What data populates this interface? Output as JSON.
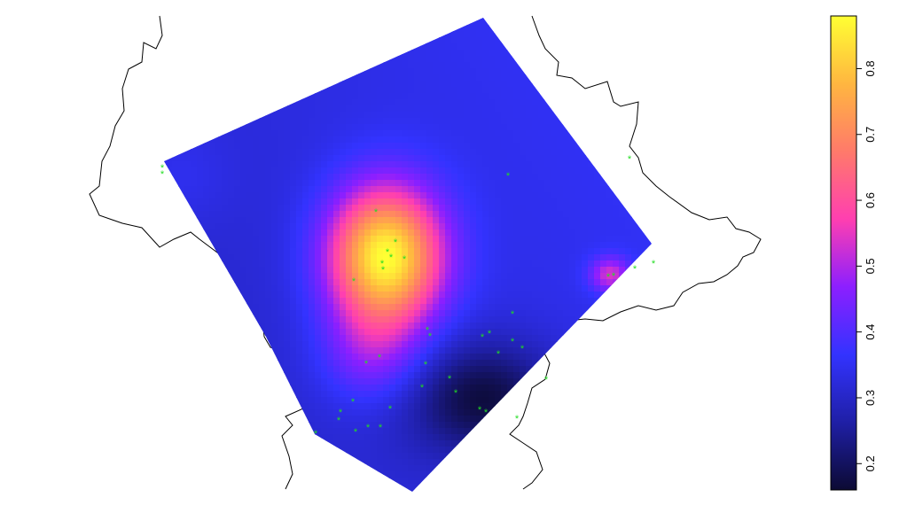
{
  "chart_data": {
    "type": "heatmap",
    "title": "",
    "xlabel": "",
    "ylabel": "",
    "legend_placement": "right",
    "grid": false,
    "colorbar": {
      "min": 0.16,
      "max": 0.88,
      "ticks": [
        0.2,
        0.3,
        0.4,
        0.5,
        0.6,
        0.7,
        0.8
      ],
      "tick_labels": [
        "0.2",
        "0.3",
        "0.4",
        "0.5",
        "0.6",
        "0.7",
        "0.8"
      ],
      "palette": [
        "#0c0a33",
        "#1f1fa6",
        "#3333ff",
        "#8c1fff",
        "#ff3fb0",
        "#ff7a6a",
        "#ffb640",
        "#ffff33"
      ]
    },
    "field": {
      "background": 0.33,
      "features": [
        {
          "name": "central-hotspot",
          "peak": 0.88
        },
        {
          "name": "east-hotspot",
          "peak": 0.52
        },
        {
          "name": "south-low",
          "peak": 0.17
        }
      ]
    },
    "colors": {
      "points": "#22dd22",
      "boundary": "#000000"
    }
  }
}
